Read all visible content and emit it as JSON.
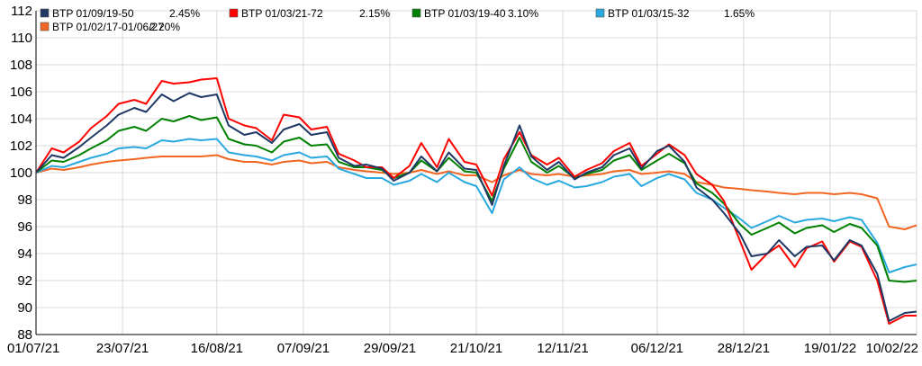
{
  "chart_data": {
    "type": "line",
    "title": "",
    "xlabel": "",
    "ylabel": "",
    "ylim": [
      88,
      112
    ],
    "y_ticks": [
      88,
      90,
      92,
      94,
      96,
      98,
      100,
      102,
      104,
      106,
      108,
      110,
      112
    ],
    "x_range": [
      "01/07/21",
      "10/02/22"
    ],
    "x_ticks": [
      "01/07/21",
      "23/07/21",
      "16/08/21",
      "07/09/21",
      "29/09/21",
      "21/10/21",
      "12/11/21",
      "06/12/21",
      "28/12/21",
      "19/01/22",
      "10/02/22"
    ],
    "grid": true,
    "legend_position": "top-left",
    "series": [
      {
        "name": "BTP 01/09/19-50",
        "legend_value": "2.45%",
        "color": "#1f3864",
        "x": [
          "01/07/21",
          "05/07/21",
          "08/07/21",
          "12/07/21",
          "15/07/21",
          "19/07/21",
          "22/07/21",
          "26/07/21",
          "29/07/21",
          "02/08/21",
          "05/08/21",
          "09/08/21",
          "12/08/21",
          "16/08/21",
          "19/08/21",
          "23/08/21",
          "26/08/21",
          "30/08/21",
          "02/09/21",
          "06/09/21",
          "09/09/21",
          "13/09/21",
          "16/09/21",
          "20/09/21",
          "23/09/21",
          "27/09/21",
          "30/09/21",
          "04/10/21",
          "07/10/21",
          "11/10/21",
          "14/10/21",
          "18/10/21",
          "21/10/21",
          "25/10/21",
          "28/10/21",
          "01/11/21",
          "04/11/21",
          "08/11/21",
          "11/11/21",
          "15/11/21",
          "18/11/21",
          "22/11/21",
          "25/11/21",
          "29/11/21",
          "02/12/21",
          "06/12/21",
          "09/12/21",
          "13/12/21",
          "16/12/21",
          "20/12/21",
          "23/12/21",
          "27/12/21",
          "30/12/21",
          "03/01/22",
          "06/01/22",
          "10/01/22",
          "13/01/22",
          "17/01/22",
          "20/01/22",
          "24/01/22",
          "27/01/22",
          "31/01/22",
          "03/02/22",
          "07/02/22",
          "10/02/22"
        ],
        "values": [
          100.0,
          101.3,
          101.1,
          101.9,
          102.6,
          103.5,
          104.3,
          104.8,
          104.5,
          105.8,
          105.3,
          105.9,
          105.6,
          105.8,
          103.5,
          102.8,
          103.0,
          102.2,
          103.2,
          103.6,
          102.8,
          103.0,
          101.1,
          100.5,
          100.6,
          100.3,
          99.4,
          100.0,
          101.2,
          100.1,
          101.5,
          100.3,
          100.2,
          97.6,
          100.5,
          103.5,
          101.2,
          100.2,
          100.8,
          99.5,
          100.0,
          100.4,
          101.3,
          101.8,
          100.3,
          101.6,
          102.0,
          100.8,
          98.9,
          98.0,
          97.0,
          95.5,
          93.8,
          94.0,
          95.0,
          93.8,
          94.5,
          94.6,
          93.5,
          95.0,
          94.6,
          92.5,
          89.0,
          89.6,
          89.7
        ]
      },
      {
        "name": "BTP 01/03/21-72",
        "legend_value": "2.15%",
        "color": "#ff0000",
        "x": [
          "01/07/21",
          "05/07/21",
          "08/07/21",
          "12/07/21",
          "15/07/21",
          "19/07/21",
          "22/07/21",
          "26/07/21",
          "29/07/21",
          "02/08/21",
          "05/08/21",
          "09/08/21",
          "12/08/21",
          "16/08/21",
          "19/08/21",
          "23/08/21",
          "26/08/21",
          "30/08/21",
          "02/09/21",
          "06/09/21",
          "09/09/21",
          "13/09/21",
          "16/09/21",
          "20/09/21",
          "23/09/21",
          "27/09/21",
          "30/09/21",
          "04/10/21",
          "07/10/21",
          "11/10/21",
          "14/10/21",
          "18/10/21",
          "21/10/21",
          "25/10/21",
          "28/10/21",
          "01/11/21",
          "04/11/21",
          "08/11/21",
          "11/11/21",
          "15/11/21",
          "18/11/21",
          "22/11/21",
          "25/11/21",
          "29/11/21",
          "02/12/21",
          "06/12/21",
          "09/12/21",
          "13/12/21",
          "16/12/21",
          "20/12/21",
          "23/12/21",
          "27/12/21",
          "30/12/21",
          "03/01/22",
          "06/01/22",
          "10/01/22",
          "13/01/22",
          "17/01/22",
          "20/01/22",
          "24/01/22",
          "27/01/22",
          "31/01/22",
          "03/02/22",
          "07/02/22",
          "10/02/22"
        ],
        "values": [
          100.0,
          101.8,
          101.5,
          102.3,
          103.3,
          104.2,
          105.1,
          105.4,
          105.1,
          106.8,
          106.6,
          106.7,
          106.9,
          107.0,
          104.0,
          103.5,
          103.3,
          102.4,
          104.3,
          104.1,
          103.2,
          103.4,
          101.4,
          100.9,
          100.4,
          100.4,
          99.6,
          100.5,
          102.2,
          100.4,
          102.5,
          100.8,
          100.6,
          98.3,
          101.0,
          103.0,
          101.3,
          100.6,
          101.1,
          99.7,
          100.2,
          100.7,
          101.6,
          102.2,
          100.5,
          101.4,
          102.1,
          101.3,
          99.9,
          99.1,
          97.9,
          95.0,
          92.8,
          94.0,
          94.6,
          93.0,
          94.4,
          94.9,
          93.4,
          94.9,
          94.5,
          92.0,
          88.8,
          89.4,
          89.4
        ]
      },
      {
        "name": "BTP 01/03/19-40",
        "legend_value": "3.10%",
        "color": "#008000",
        "x": [
          "01/07/21",
          "05/07/21",
          "08/07/21",
          "12/07/21",
          "15/07/21",
          "19/07/21",
          "22/07/21",
          "26/07/21",
          "29/07/21",
          "02/08/21",
          "05/08/21",
          "09/08/21",
          "12/08/21",
          "16/08/21",
          "19/08/21",
          "23/08/21",
          "26/08/21",
          "30/08/21",
          "02/09/21",
          "06/09/21",
          "09/09/21",
          "13/09/21",
          "16/09/21",
          "20/09/21",
          "23/09/21",
          "27/09/21",
          "30/09/21",
          "04/10/21",
          "07/10/21",
          "11/10/21",
          "14/10/21",
          "18/10/21",
          "21/10/21",
          "25/10/21",
          "28/10/21",
          "01/11/21",
          "04/11/21",
          "08/11/21",
          "11/11/21",
          "15/11/21",
          "18/11/21",
          "22/11/21",
          "25/11/21",
          "29/11/21",
          "02/12/21",
          "06/12/21",
          "09/12/21",
          "13/12/21",
          "16/12/21",
          "20/12/21",
          "23/12/21",
          "27/12/21",
          "30/12/21",
          "03/01/22",
          "06/01/22",
          "10/01/22",
          "13/01/22",
          "17/01/22",
          "20/01/22",
          "24/01/22",
          "27/01/22",
          "31/01/22",
          "03/02/22",
          "07/02/22",
          "10/02/22"
        ],
        "values": [
          100.0,
          100.9,
          100.8,
          101.3,
          101.8,
          102.4,
          103.1,
          103.4,
          103.1,
          104.0,
          103.8,
          104.2,
          103.9,
          104.1,
          102.5,
          102.1,
          102.0,
          101.5,
          102.3,
          102.6,
          102.0,
          102.1,
          100.8,
          100.4,
          100.4,
          100.2,
          99.6,
          100.0,
          100.9,
          100.1,
          101.1,
          100.1,
          100.0,
          97.9,
          100.3,
          102.6,
          100.8,
          100.0,
          100.5,
          99.6,
          99.9,
          100.2,
          100.9,
          101.3,
          100.2,
          100.9,
          101.4,
          100.7,
          99.2,
          98.5,
          97.7,
          96.2,
          95.4,
          95.9,
          96.3,
          95.5,
          95.9,
          96.1,
          95.6,
          96.2,
          95.9,
          94.6,
          92.0,
          91.9,
          92.0
        ]
      },
      {
        "name": "BTP 01/03/15-32",
        "legend_value": "1.65%",
        "color": "#29a8e0",
        "x": [
          "01/07/21",
          "05/07/21",
          "08/07/21",
          "12/07/21",
          "15/07/21",
          "19/07/21",
          "22/07/21",
          "26/07/21",
          "29/07/21",
          "02/08/21",
          "05/08/21",
          "09/08/21",
          "12/08/21",
          "16/08/21",
          "19/08/21",
          "23/08/21",
          "26/08/21",
          "30/08/21",
          "02/09/21",
          "06/09/21",
          "09/09/21",
          "13/09/21",
          "16/09/21",
          "20/09/21",
          "23/09/21",
          "27/09/21",
          "30/09/21",
          "04/10/21",
          "07/10/21",
          "11/10/21",
          "14/10/21",
          "18/10/21",
          "21/10/21",
          "25/10/21",
          "28/10/21",
          "01/11/21",
          "04/11/21",
          "08/11/21",
          "11/11/21",
          "15/11/21",
          "18/11/21",
          "22/11/21",
          "25/11/21",
          "29/11/21",
          "02/12/21",
          "06/12/21",
          "09/12/21",
          "13/12/21",
          "16/12/21",
          "20/12/21",
          "23/12/21",
          "27/12/21",
          "30/12/21",
          "03/01/22",
          "06/01/22",
          "10/01/22",
          "13/01/22",
          "17/01/22",
          "20/01/22",
          "24/01/22",
          "27/01/22",
          "31/01/22",
          "03/02/22",
          "07/02/22",
          "10/02/22"
        ],
        "values": [
          100.0,
          100.5,
          100.4,
          100.8,
          101.1,
          101.4,
          101.8,
          101.9,
          101.8,
          102.4,
          102.3,
          102.5,
          102.4,
          102.5,
          101.5,
          101.3,
          101.2,
          100.9,
          101.3,
          101.5,
          101.1,
          101.2,
          100.3,
          99.9,
          99.6,
          99.6,
          99.1,
          99.4,
          99.9,
          99.3,
          100.0,
          99.3,
          99.0,
          97.0,
          99.5,
          100.4,
          99.6,
          99.1,
          99.4,
          98.9,
          99.0,
          99.3,
          99.7,
          99.9,
          99.0,
          99.6,
          99.9,
          99.5,
          98.5,
          98.0,
          97.4,
          96.6,
          95.9,
          96.4,
          96.8,
          96.3,
          96.5,
          96.6,
          96.4,
          96.7,
          96.5,
          94.8,
          92.6,
          93.0,
          93.2
        ]
      },
      {
        "name": "BTP 01/02/17-01/06/27",
        "legend_value": "2.20%",
        "color": "#f26522",
        "x": [
          "01/07/21",
          "05/07/21",
          "08/07/21",
          "12/07/21",
          "15/07/21",
          "19/07/21",
          "22/07/21",
          "26/07/21",
          "29/07/21",
          "02/08/21",
          "05/08/21",
          "09/08/21",
          "12/08/21",
          "16/08/21",
          "19/08/21",
          "23/08/21",
          "26/08/21",
          "30/08/21",
          "02/09/21",
          "06/09/21",
          "09/09/21",
          "13/09/21",
          "16/09/21",
          "20/09/21",
          "23/09/21",
          "27/09/21",
          "30/09/21",
          "04/10/21",
          "07/10/21",
          "11/10/21",
          "14/10/21",
          "18/10/21",
          "21/10/21",
          "25/10/21",
          "28/10/21",
          "01/11/21",
          "04/11/21",
          "08/11/21",
          "11/11/21",
          "15/11/21",
          "18/11/21",
          "22/11/21",
          "25/11/21",
          "29/11/21",
          "02/12/21",
          "06/12/21",
          "09/12/21",
          "13/12/21",
          "16/12/21",
          "20/12/21",
          "23/12/21",
          "27/12/21",
          "30/12/21",
          "03/01/22",
          "06/01/22",
          "10/01/22",
          "13/01/22",
          "17/01/22",
          "20/01/22",
          "24/01/22",
          "27/01/22",
          "31/01/22",
          "03/02/22",
          "07/02/22",
          "10/02/22"
        ],
        "values": [
          100.0,
          100.3,
          100.2,
          100.4,
          100.6,
          100.8,
          100.9,
          101.0,
          101.1,
          101.2,
          101.2,
          101.2,
          101.2,
          101.3,
          101.0,
          100.8,
          100.8,
          100.6,
          100.8,
          100.9,
          100.7,
          100.8,
          100.4,
          100.2,
          100.1,
          100.0,
          99.9,
          100.0,
          100.2,
          99.9,
          100.1,
          99.8,
          99.8,
          99.3,
          99.8,
          100.2,
          99.9,
          99.8,
          99.9,
          99.7,
          99.8,
          99.9,
          100.1,
          100.2,
          99.9,
          100.0,
          100.1,
          99.9,
          99.3,
          99.1,
          98.9,
          98.8,
          98.7,
          98.6,
          98.5,
          98.4,
          98.5,
          98.5,
          98.4,
          98.5,
          98.4,
          98.1,
          96.0,
          95.8,
          96.1
        ]
      }
    ]
  }
}
